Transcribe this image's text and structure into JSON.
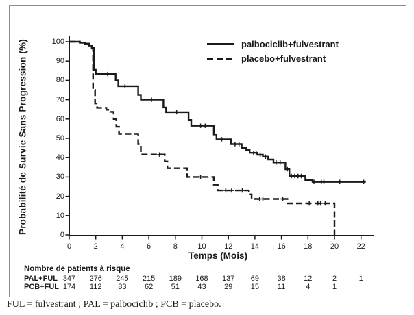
{
  "figure": {
    "background": "#ffffff",
    "border_color": "#8c8c8c",
    "line_color": "#1a1a1a"
  },
  "chart_data": {
    "type": "line",
    "variant": "kaplan_meier_step",
    "title": "",
    "xlabel": "Temps (Mois)",
    "ylabel": "Probabilité de Survie Sans Progression (%)",
    "xlim": [
      0,
      23
    ],
    "ylim": [
      0,
      100
    ],
    "x_ticks": [
      0,
      2,
      4,
      6,
      8,
      10,
      12,
      14,
      16,
      18,
      20,
      22
    ],
    "y_ticks": [
      0,
      10,
      20,
      30,
      40,
      50,
      60,
      70,
      80,
      90,
      100
    ],
    "grid": false,
    "legend_position": "top-right-inside",
    "series": [
      {
        "name": "palbociclib+fulvestrant",
        "line_style": "solid",
        "color": "#1a1a1a",
        "points": [
          [
            0,
            100
          ],
          [
            0.8,
            99.5
          ],
          [
            1.2,
            99
          ],
          [
            1.5,
            98
          ],
          [
            1.7,
            97
          ],
          [
            1.85,
            85.5
          ],
          [
            2.0,
            83.3
          ],
          [
            3.5,
            80
          ],
          [
            3.7,
            77
          ],
          [
            5.2,
            72.5
          ],
          [
            5.4,
            70
          ],
          [
            7.1,
            66
          ],
          [
            7.3,
            63.5
          ],
          [
            9.0,
            59.5
          ],
          [
            9.2,
            56.5
          ],
          [
            10.9,
            52
          ],
          [
            11.1,
            49.5
          ],
          [
            12.2,
            47
          ],
          [
            13.0,
            45
          ],
          [
            13.35,
            44
          ],
          [
            13.6,
            42.5
          ],
          [
            14.2,
            41.5
          ],
          [
            14.6,
            40.5
          ],
          [
            15.0,
            39
          ],
          [
            15.4,
            37.5
          ],
          [
            16.3,
            34
          ],
          [
            16.6,
            30.5
          ],
          [
            17.8,
            28.4
          ],
          [
            18.35,
            27.4
          ],
          [
            22.3,
            27.4
          ]
        ],
        "censor_marks": [
          [
            2.9,
            83.3
          ],
          [
            4.2,
            77
          ],
          [
            6.2,
            70
          ],
          [
            8.1,
            63.5
          ],
          [
            9.9,
            56.5
          ],
          [
            10.25,
            56.5
          ],
          [
            11.5,
            49.5
          ],
          [
            12.5,
            47
          ],
          [
            12.8,
            47
          ],
          [
            13.9,
            42.5
          ],
          [
            14.1,
            42.5
          ],
          [
            14.4,
            41.5
          ],
          [
            14.8,
            40.5
          ],
          [
            15.6,
            37.5
          ],
          [
            15.9,
            37.5
          ],
          [
            16.45,
            34
          ],
          [
            16.75,
            30.5
          ],
          [
            17.0,
            30.5
          ],
          [
            17.25,
            30.5
          ],
          [
            17.5,
            30.5
          ],
          [
            18.45,
            27.4
          ],
          [
            19.0,
            27.4
          ],
          [
            19.2,
            27.4
          ],
          [
            20.4,
            27.4
          ],
          [
            22.2,
            27.4
          ]
        ]
      },
      {
        "name": "placebo+fulvestrant",
        "line_style": "dashed",
        "color": "#1a1a1a",
        "points": [
          [
            0,
            100
          ],
          [
            0.8,
            99.5
          ],
          [
            1.2,
            99
          ],
          [
            1.5,
            98
          ],
          [
            1.7,
            96.5
          ],
          [
            1.8,
            75
          ],
          [
            1.95,
            68
          ],
          [
            2.1,
            65.8
          ],
          [
            2.8,
            64.8
          ],
          [
            3.1,
            63.7
          ],
          [
            3.35,
            60
          ],
          [
            3.55,
            56
          ],
          [
            3.75,
            52.3
          ],
          [
            5.2,
            47
          ],
          [
            5.4,
            41.6
          ],
          [
            7.2,
            38
          ],
          [
            7.4,
            34.5
          ],
          [
            8.9,
            30
          ],
          [
            10.9,
            26
          ],
          [
            11.2,
            23
          ],
          [
            13.55,
            21
          ],
          [
            13.75,
            18.6
          ],
          [
            16.45,
            16.3
          ],
          [
            20,
            0
          ]
        ],
        "censor_marks": [
          [
            6.8,
            41.6
          ],
          [
            9.9,
            30
          ],
          [
            11.8,
            23
          ],
          [
            12.25,
            23
          ],
          [
            13.05,
            23
          ],
          [
            14.35,
            18.6
          ],
          [
            14.6,
            18.6
          ],
          [
            16.1,
            18.6
          ],
          [
            18.1,
            16.3
          ],
          [
            18.75,
            16.3
          ],
          [
            18.95,
            16.3
          ],
          [
            19.3,
            16.3
          ]
        ]
      }
    ]
  },
  "at_risk_table": {
    "title": "Nombre de patients à risque",
    "times": [
      0,
      2,
      4,
      6,
      8,
      10,
      12,
      14,
      16,
      18,
      20,
      22
    ],
    "rows": [
      {
        "label": "PAL+FUL",
        "values": [
          347,
          276,
          245,
          215,
          189,
          168,
          137,
          69,
          38,
          12,
          2,
          1
        ]
      },
      {
        "label": "PCB+FUL",
        "values": [
          174,
          112,
          83,
          62,
          51,
          43,
          29,
          15,
          11,
          4,
          1
        ]
      }
    ]
  },
  "footnote": "FUL = fulvestrant ; PAL = palbociclib ; PCB = placebo."
}
